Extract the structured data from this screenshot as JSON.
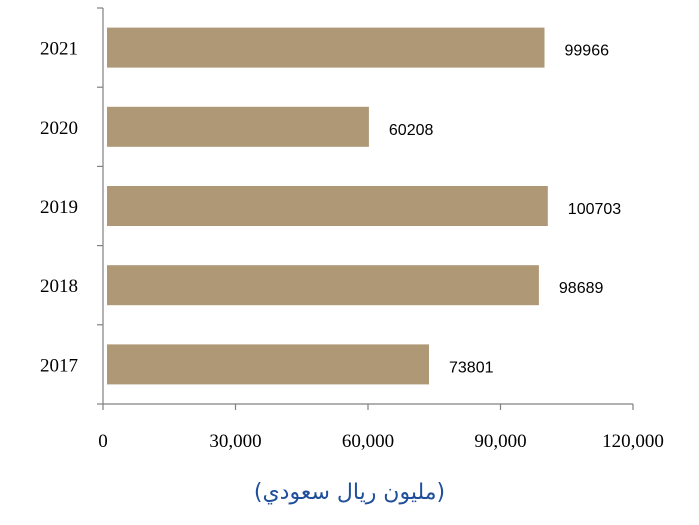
{
  "chart_data": {
    "type": "bar",
    "orientation": "horizontal",
    "categories": [
      "2021",
      "2020",
      "2019",
      "2018",
      "2017"
    ],
    "values": [
      99966,
      60208,
      100703,
      98689,
      73801
    ],
    "data_labels": [
      "99966",
      "60208",
      "100703",
      "98689",
      "73801"
    ],
    "x_ticks": [
      "0",
      "30,000",
      "60,000",
      "90,000",
      "120,000"
    ],
    "xlim": [
      0,
      120000
    ],
    "xlabel": "(مليون ريال سعودي)",
    "grid": false,
    "legend": "none",
    "bar_color": "#ae9875",
    "label_color": "#1f4e9a"
  }
}
